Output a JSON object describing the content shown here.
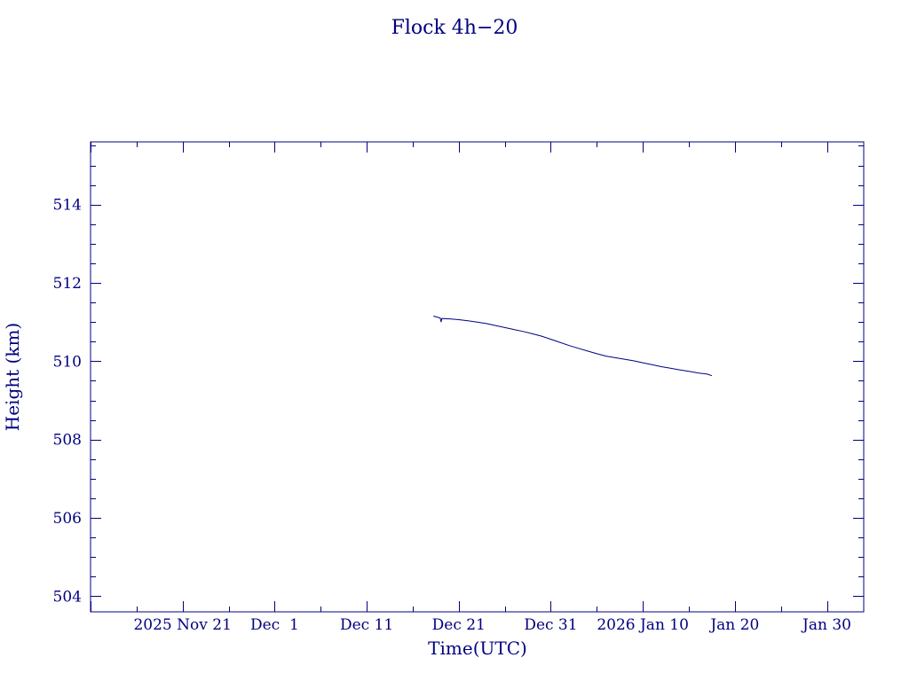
{
  "chart_data": {
    "type": "line",
    "title": "Flock 4h−20",
    "xlabel": "Time(UTC)",
    "ylabel": "Height (km)",
    "x_tick_labels": [
      "2025 Nov 21",
      "Dec  1",
      "Dec 11",
      "Dec 21",
      "Dec 31",
      "2026 Jan 10",
      "Jan 20",
      "Jan 30"
    ],
    "x_tick_dates": [
      "2025-11-21",
      "2025-12-01",
      "2025-12-11",
      "2025-12-21",
      "2025-12-31",
      "2026-01-10",
      "2026-01-20",
      "2026-01-30"
    ],
    "xlim": [
      "2025-11-11T00:00",
      "2026-02-03T00:00"
    ],
    "y_ticks": [
      504,
      506,
      508,
      510,
      512,
      514
    ],
    "ylim": [
      503.6,
      515.6
    ],
    "grid": false,
    "legend": "none",
    "color": "#000080",
    "series": [
      {
        "points": [
          [
            "2025-12-18T06:00",
            511.15
          ],
          [
            "2025-12-18T18:00",
            511.12
          ],
          [
            "2025-12-19T00:00",
            511.1
          ],
          [
            "2025-12-19T02:00",
            511.0
          ],
          [
            "2025-12-19T04:00",
            511.09
          ],
          [
            "2025-12-20T00:00",
            511.08
          ],
          [
            "2025-12-21T00:00",
            511.06
          ],
          [
            "2025-12-22T00:00",
            511.03
          ],
          [
            "2025-12-23T00:00",
            511.0
          ],
          [
            "2025-12-24T00:00",
            510.96
          ],
          [
            "2025-12-25T00:00",
            510.91
          ],
          [
            "2025-12-26T00:00",
            510.86
          ],
          [
            "2025-12-27T00:00",
            510.81
          ],
          [
            "2025-12-28T00:00",
            510.76
          ],
          [
            "2025-12-29T00:00",
            510.7
          ],
          [
            "2025-12-30T00:00",
            510.64
          ],
          [
            "2025-12-31T00:00",
            510.56
          ],
          [
            "2026-01-01T00:00",
            510.48
          ],
          [
            "2026-01-02T00:00",
            510.4
          ],
          [
            "2026-01-03T00:00",
            510.33
          ],
          [
            "2026-01-04T00:00",
            510.26
          ],
          [
            "2026-01-05T00:00",
            510.19
          ],
          [
            "2026-01-06T00:00",
            510.13
          ],
          [
            "2026-01-07T00:00",
            510.09
          ],
          [
            "2026-01-08T00:00",
            510.05
          ],
          [
            "2026-01-09T00:00",
            510.01
          ],
          [
            "2026-01-10T00:00",
            509.96
          ],
          [
            "2026-01-11T00:00",
            509.91
          ],
          [
            "2026-01-12T00:00",
            509.86
          ],
          [
            "2026-01-13T00:00",
            509.82
          ],
          [
            "2026-01-14T00:00",
            509.78
          ],
          [
            "2026-01-15T00:00",
            509.74
          ],
          [
            "2026-01-16T00:00",
            509.7
          ],
          [
            "2026-01-17T00:00",
            509.67
          ],
          [
            "2026-01-17T12:00",
            509.63
          ]
        ]
      }
    ]
  }
}
